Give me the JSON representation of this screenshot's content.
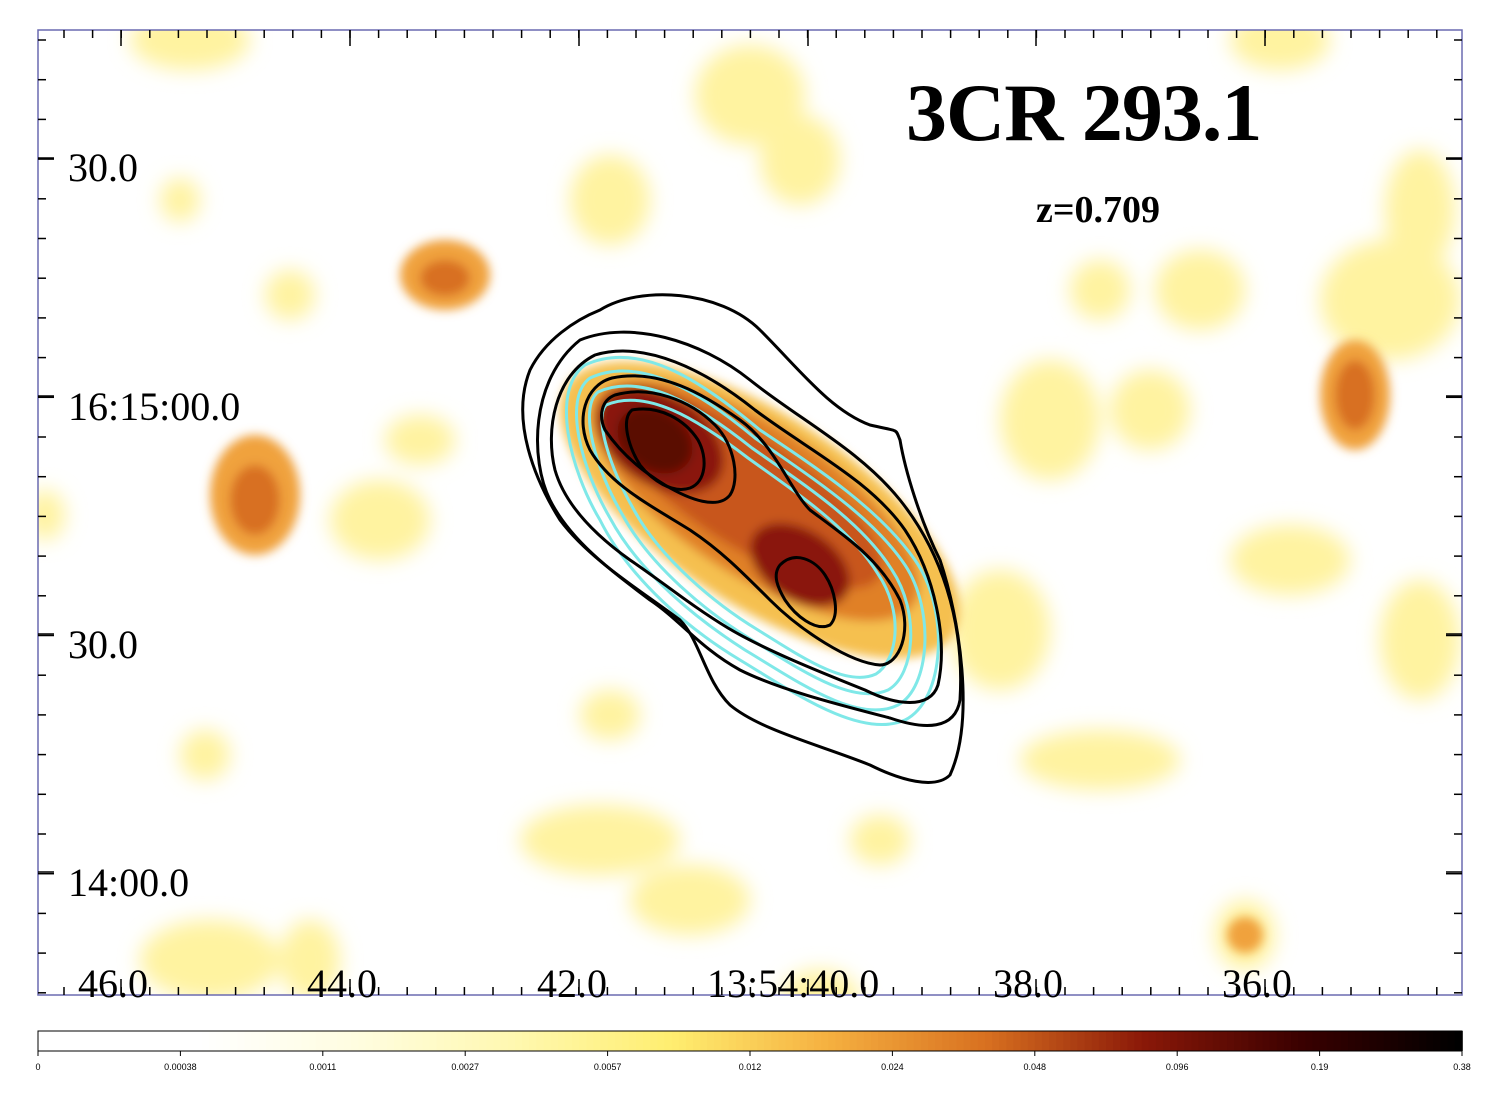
{
  "title": "3CR 293.1",
  "redshift_label": "z=0.709",
  "y_axis_labels": [
    "30.0",
    "16:15:00.0",
    "30.0",
    "14:00.0"
  ],
  "x_axis_labels": [
    "46.0",
    "44.0",
    "42.0",
    "13:54:40.0",
    "38.0",
    "36.0"
  ],
  "colorbar": {
    "tick_labels": [
      "0",
      "0.00038",
      "0.0011",
      "0.0027",
      "0.0057",
      "0.012",
      "0.024",
      "0.048",
      "0.096",
      "0.19",
      "0.38"
    ],
    "colors": [
      "#ffffff",
      "#ffffff",
      "#fffde0",
      "#fff8b0",
      "#ffee70",
      "#f5b040",
      "#d87020",
      "#8a1808",
      "#3a0000",
      "#000000"
    ]
  },
  "colors": {
    "heat_faint": "#fff3a0",
    "heat_mid": "#f0a23c",
    "heat_strong": "#c8561a",
    "heat_core": "#6a0e00",
    "contour_dark": "#000000",
    "contour_cyan": "#7fe8e8",
    "frame": "#6a6ab0"
  }
}
